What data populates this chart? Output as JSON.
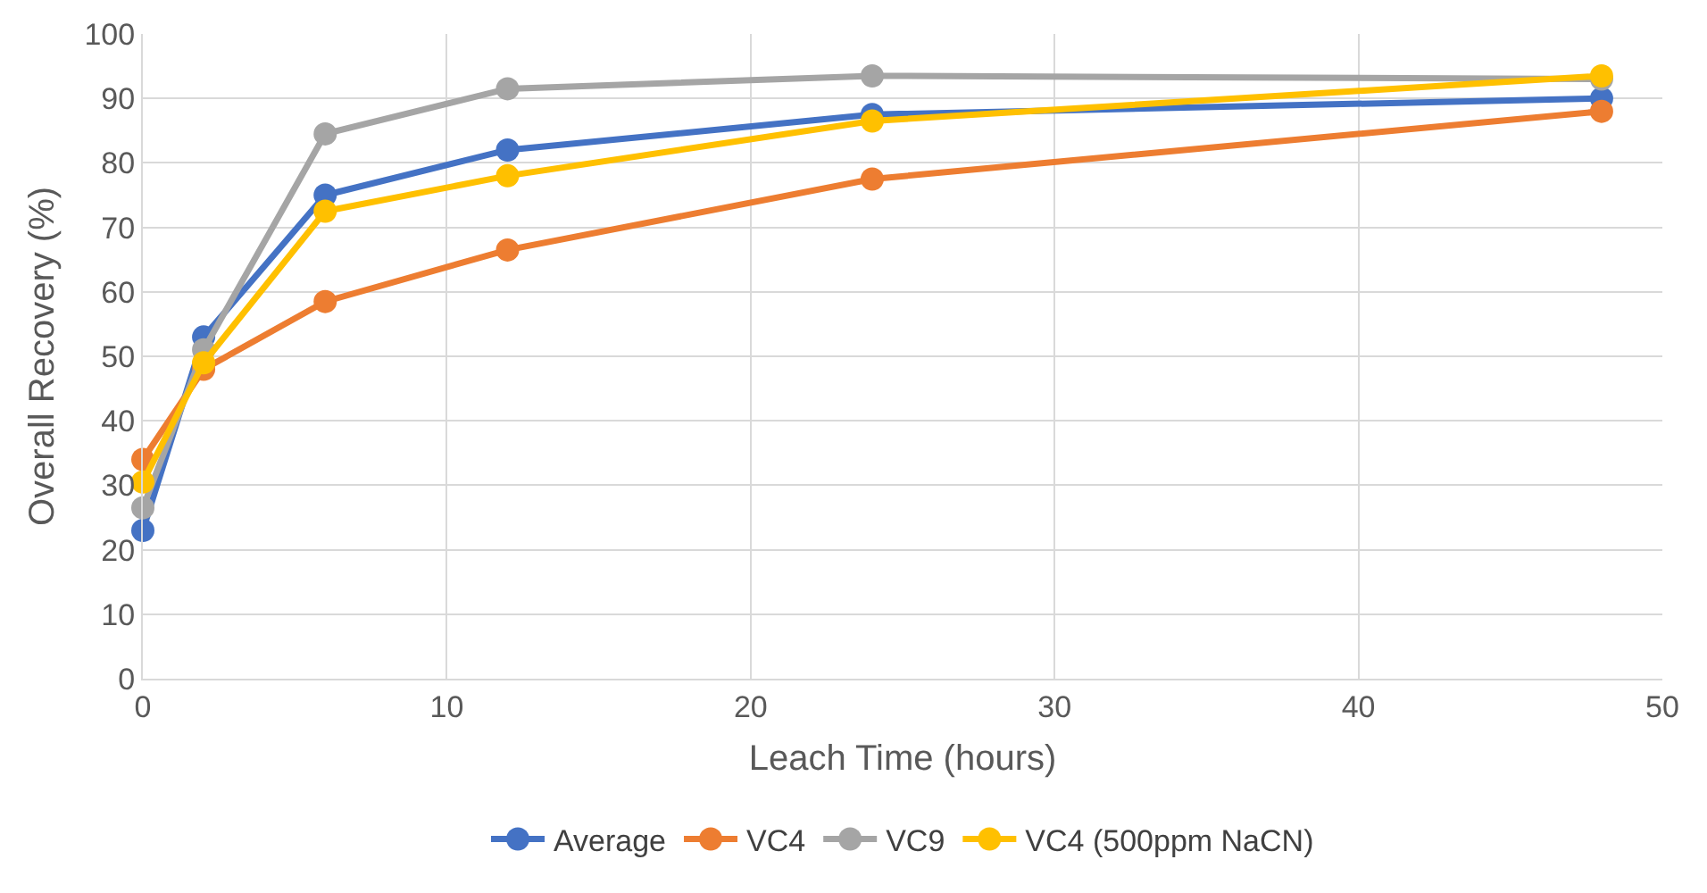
{
  "chart_data": {
    "type": "line",
    "xlabel": "Leach Time (hours)",
    "ylabel": "Overall Recovery (%)",
    "x": [
      0,
      2,
      6,
      12,
      24,
      48
    ],
    "series": [
      {
        "name": "Average",
        "color": "#4472c4",
        "values": [
          23,
          53,
          75,
          82,
          87.5,
          90
        ]
      },
      {
        "name": "VC4",
        "color": "#ed7d31",
        "values": [
          34,
          48,
          58.5,
          66.5,
          77.5,
          88
        ]
      },
      {
        "name": "VC9",
        "color": "#a5a5a5",
        "values": [
          26.5,
          51,
          84.5,
          91.5,
          93.5,
          93
        ]
      },
      {
        "name": "VC4 (500ppm NaCN)",
        "color": "#ffc000",
        "values": [
          30.5,
          49,
          72.5,
          78,
          86.5,
          93.5
        ]
      }
    ],
    "xlim": [
      0,
      50
    ],
    "xticks": [
      0,
      10,
      20,
      30,
      40,
      50
    ],
    "ylim": [
      0,
      100
    ],
    "yticks": [
      0,
      10,
      20,
      30,
      40,
      50,
      60,
      70,
      80,
      90,
      100
    ],
    "grid": true,
    "legend": "bottom",
    "marker": "circle",
    "line_style": "solid"
  }
}
